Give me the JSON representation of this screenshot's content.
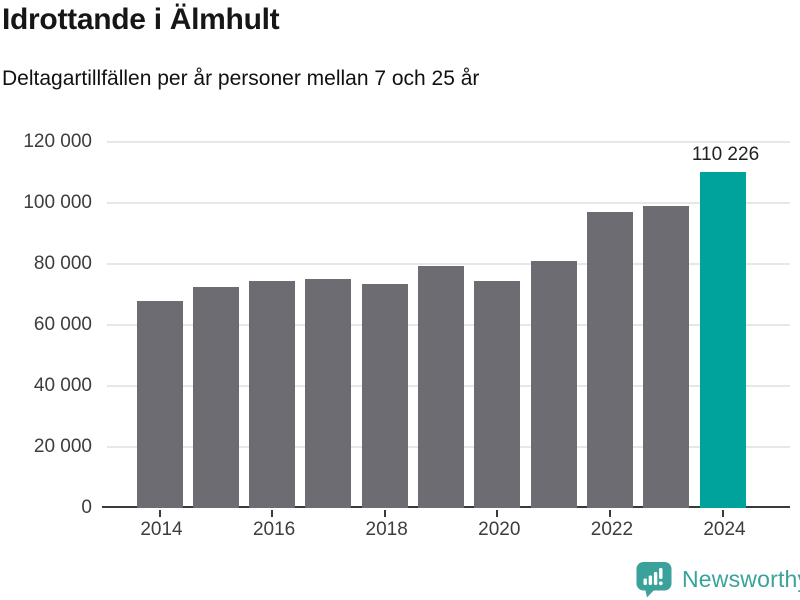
{
  "header": {
    "title": "Idrottande i Älmhult",
    "subtitle": "Deltagartillfällen per år personer mellan 7 och 25 år"
  },
  "chart_data": {
    "type": "bar",
    "title": "Idrottande i Älmhult",
    "subtitle": "Deltagartillfällen per år personer mellan 7 och 25 år",
    "categories": [
      "2014",
      "2015",
      "2016",
      "2017",
      "2018",
      "2019",
      "2020",
      "2021",
      "2022",
      "2023",
      "2024"
    ],
    "values": [
      67900,
      72400,
      74400,
      75100,
      73600,
      79400,
      74400,
      81100,
      97100,
      98900,
      110226
    ],
    "bar_color": "#6c6c72",
    "highlight": {
      "index": 10,
      "label": "110 226",
      "color": "#00a39b"
    },
    "ylim": [
      0,
      120000
    ],
    "y_ticks": [
      {
        "value": 0,
        "label": "0"
      },
      {
        "value": 20000,
        "label": "20 000"
      },
      {
        "value": 40000,
        "label": "40 000"
      },
      {
        "value": 60000,
        "label": "60 000"
      },
      {
        "value": 80000,
        "label": "80 000"
      },
      {
        "value": 100000,
        "label": "100 000"
      },
      {
        "value": 120000,
        "label": "120 000"
      }
    ],
    "x_ticks": [
      {
        "index": 0,
        "label": "2014"
      },
      {
        "index": 2,
        "label": "2016"
      },
      {
        "index": 4,
        "label": "2018"
      },
      {
        "index": 6,
        "label": "2020"
      },
      {
        "index": 8,
        "label": "2022"
      },
      {
        "index": 10,
        "label": "2024"
      }
    ],
    "grid": true,
    "legend": "none",
    "grid_color": "#e7e7e7",
    "axis_color": "#3a3a3a",
    "label_color": "#3d3d3d"
  },
  "footer": {
    "brand": "Newsworthy",
    "logo_color": "#3ba29b",
    "logo_icon": "newsworthy-chart-bubble"
  }
}
